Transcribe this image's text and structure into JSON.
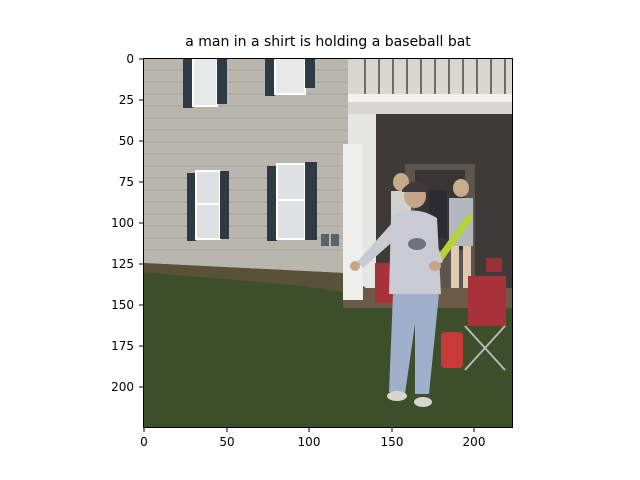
{
  "title": "a man in a shirt is holding a baseball bat",
  "image": {
    "description_colors": {
      "siding": "#b9b6ae",
      "shutter": "#2f3b44",
      "grass": "#3d4e2a",
      "porch_shadow": "#3e3a37",
      "sweatshirt": "#c9cbd3",
      "jeans": "#9fb0cd",
      "bat": "#b7d339",
      "chair_red": "#a8323a",
      "ground_dirt": "#6a5a47"
    }
  },
  "axes": {
    "y_ticks": [
      "0",
      "25",
      "50",
      "75",
      "100",
      "125",
      "150",
      "175",
      "200"
    ],
    "x_ticks": [
      "0",
      "50",
      "100",
      "150",
      "200"
    ],
    "x_range": [
      0,
      224
    ],
    "y_range": [
      0,
      224
    ]
  }
}
